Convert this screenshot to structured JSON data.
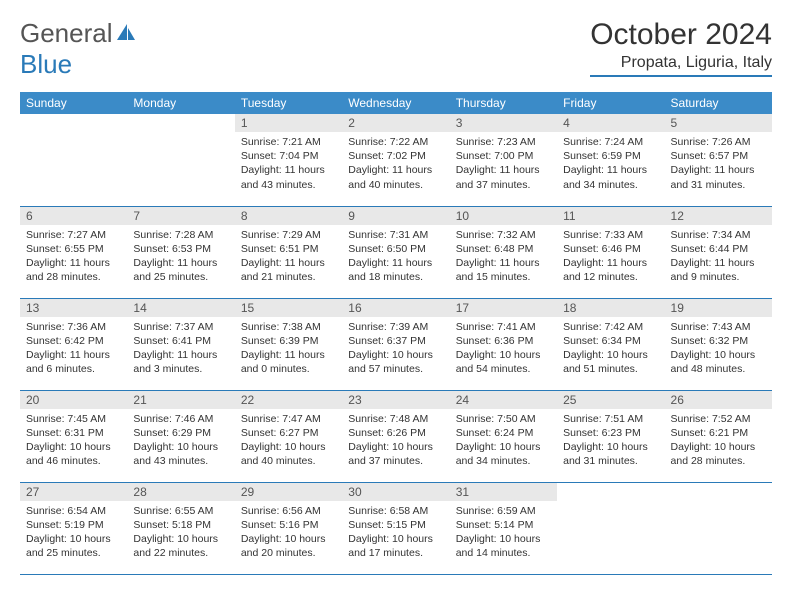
{
  "brand": {
    "part1": "General",
    "part2": "Blue"
  },
  "title": "October 2024",
  "location": "Propata, Liguria, Italy",
  "colors": {
    "header_bg": "#3b8bc8",
    "accent": "#2a7ab8",
    "daynum_bg": "#e8e8e8",
    "text": "#333333"
  },
  "day_names": [
    "Sunday",
    "Monday",
    "Tuesday",
    "Wednesday",
    "Thursday",
    "Friday",
    "Saturday"
  ],
  "weeks": [
    [
      null,
      null,
      {
        "n": "1",
        "sr": "7:21 AM",
        "ss": "7:04 PM",
        "dl": "11 hours and 43 minutes."
      },
      {
        "n": "2",
        "sr": "7:22 AM",
        "ss": "7:02 PM",
        "dl": "11 hours and 40 minutes."
      },
      {
        "n": "3",
        "sr": "7:23 AM",
        "ss": "7:00 PM",
        "dl": "11 hours and 37 minutes."
      },
      {
        "n": "4",
        "sr": "7:24 AM",
        "ss": "6:59 PM",
        "dl": "11 hours and 34 minutes."
      },
      {
        "n": "5",
        "sr": "7:26 AM",
        "ss": "6:57 PM",
        "dl": "11 hours and 31 minutes."
      }
    ],
    [
      {
        "n": "6",
        "sr": "7:27 AM",
        "ss": "6:55 PM",
        "dl": "11 hours and 28 minutes."
      },
      {
        "n": "7",
        "sr": "7:28 AM",
        "ss": "6:53 PM",
        "dl": "11 hours and 25 minutes."
      },
      {
        "n": "8",
        "sr": "7:29 AM",
        "ss": "6:51 PM",
        "dl": "11 hours and 21 minutes."
      },
      {
        "n": "9",
        "sr": "7:31 AM",
        "ss": "6:50 PM",
        "dl": "11 hours and 18 minutes."
      },
      {
        "n": "10",
        "sr": "7:32 AM",
        "ss": "6:48 PM",
        "dl": "11 hours and 15 minutes."
      },
      {
        "n": "11",
        "sr": "7:33 AM",
        "ss": "6:46 PM",
        "dl": "11 hours and 12 minutes."
      },
      {
        "n": "12",
        "sr": "7:34 AM",
        "ss": "6:44 PM",
        "dl": "11 hours and 9 minutes."
      }
    ],
    [
      {
        "n": "13",
        "sr": "7:36 AM",
        "ss": "6:42 PM",
        "dl": "11 hours and 6 minutes."
      },
      {
        "n": "14",
        "sr": "7:37 AM",
        "ss": "6:41 PM",
        "dl": "11 hours and 3 minutes."
      },
      {
        "n": "15",
        "sr": "7:38 AM",
        "ss": "6:39 PM",
        "dl": "11 hours and 0 minutes."
      },
      {
        "n": "16",
        "sr": "7:39 AM",
        "ss": "6:37 PM",
        "dl": "10 hours and 57 minutes."
      },
      {
        "n": "17",
        "sr": "7:41 AM",
        "ss": "6:36 PM",
        "dl": "10 hours and 54 minutes."
      },
      {
        "n": "18",
        "sr": "7:42 AM",
        "ss": "6:34 PM",
        "dl": "10 hours and 51 minutes."
      },
      {
        "n": "19",
        "sr": "7:43 AM",
        "ss": "6:32 PM",
        "dl": "10 hours and 48 minutes."
      }
    ],
    [
      {
        "n": "20",
        "sr": "7:45 AM",
        "ss": "6:31 PM",
        "dl": "10 hours and 46 minutes."
      },
      {
        "n": "21",
        "sr": "7:46 AM",
        "ss": "6:29 PM",
        "dl": "10 hours and 43 minutes."
      },
      {
        "n": "22",
        "sr": "7:47 AM",
        "ss": "6:27 PM",
        "dl": "10 hours and 40 minutes."
      },
      {
        "n": "23",
        "sr": "7:48 AM",
        "ss": "6:26 PM",
        "dl": "10 hours and 37 minutes."
      },
      {
        "n": "24",
        "sr": "7:50 AM",
        "ss": "6:24 PM",
        "dl": "10 hours and 34 minutes."
      },
      {
        "n": "25",
        "sr": "7:51 AM",
        "ss": "6:23 PM",
        "dl": "10 hours and 31 minutes."
      },
      {
        "n": "26",
        "sr": "7:52 AM",
        "ss": "6:21 PM",
        "dl": "10 hours and 28 minutes."
      }
    ],
    [
      {
        "n": "27",
        "sr": "6:54 AM",
        "ss": "5:19 PM",
        "dl": "10 hours and 25 minutes."
      },
      {
        "n": "28",
        "sr": "6:55 AM",
        "ss": "5:18 PM",
        "dl": "10 hours and 22 minutes."
      },
      {
        "n": "29",
        "sr": "6:56 AM",
        "ss": "5:16 PM",
        "dl": "10 hours and 20 minutes."
      },
      {
        "n": "30",
        "sr": "6:58 AM",
        "ss": "5:15 PM",
        "dl": "10 hours and 17 minutes."
      },
      {
        "n": "31",
        "sr": "6:59 AM",
        "ss": "5:14 PM",
        "dl": "10 hours and 14 minutes."
      },
      null,
      null
    ]
  ],
  "labels": {
    "sunrise": "Sunrise:",
    "sunset": "Sunset:",
    "daylight": "Daylight:"
  }
}
